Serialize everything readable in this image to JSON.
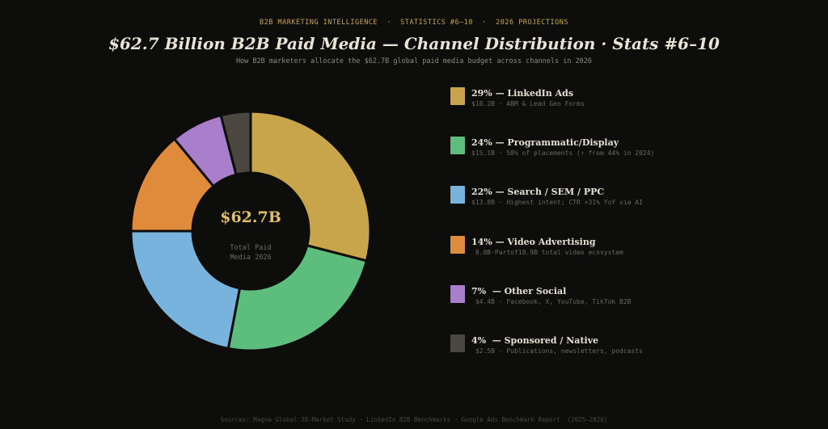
{
  "header": {
    "eyebrow": "B2B MARKETING INTELLIGENCE  ·  STATISTICS #6–10  ·  2026 PROJECTIONS",
    "title": "$62.7 Billion B2B Paid Media — Channel Distribution · Stats #6–10",
    "subtitle": "How B2B marketers allocate the $62.7B global paid media budget across channels in 2026"
  },
  "center": {
    "value": "$62.7B",
    "label_line1": "Total Paid",
    "label_line2": "Media 2026"
  },
  "legend": [
    {
      "title": "29% — LinkedIn Ads",
      "desc": "$18.2B · ABM & Lead Gen Forms",
      "color": "#c8a54b"
    },
    {
      "title": "24% — Programmatic/Display",
      "desc": "$15.1B · 58% of placements (↑ from 44% in 2024)",
      "color": "#5cbd7d"
    },
    {
      "title": "22% — Search / SEM / PPC",
      "desc": "$13.8B · Highest intent; CTR +31% YoY via AI",
      "color": "#77b3dc"
    },
    {
      "title": "14% — Video Advertising",
      "desc": " 8.8B·Partof18.9B total video ecosystem",
      "color": "#e08b3c"
    },
    {
      "title": "7%  — Other Social",
      "desc": " $4.4B · Facebook, X, YouTube, TikTok B2B",
      "color": "#a97ecb"
    },
    {
      "title": "4%  — Sponsored / Native",
      "desc": " $2.5B · Publications, newsletters, podcasts",
      "color": "#4a4741"
    }
  ],
  "footer": "Sources: Magna Global 38-Market Study · LinkedIn B2B Benchmarks · Google Ads Benchmark Report  (2025–2026)",
  "chart_data": {
    "type": "pie",
    "title": "$62.7 Billion B2B Paid Media — Channel Distribution · Stats #6–10",
    "categories": [
      "LinkedIn Ads",
      "Programmatic/Display",
      "Search / SEM / PPC",
      "Video Advertising",
      "Other Social",
      "Sponsored / Native"
    ],
    "values": [
      29,
      24,
      22,
      14,
      7,
      4
    ],
    "amounts_billion_usd": [
      18.2,
      15.1,
      13.8,
      8.8,
      4.4,
      2.5
    ],
    "colors": [
      "#c8a54b",
      "#5cbd7d",
      "#77b3dc",
      "#e08b3c",
      "#a97ecb",
      "#4a4741"
    ],
    "total": "$62.7B",
    "legend_position": "right"
  }
}
